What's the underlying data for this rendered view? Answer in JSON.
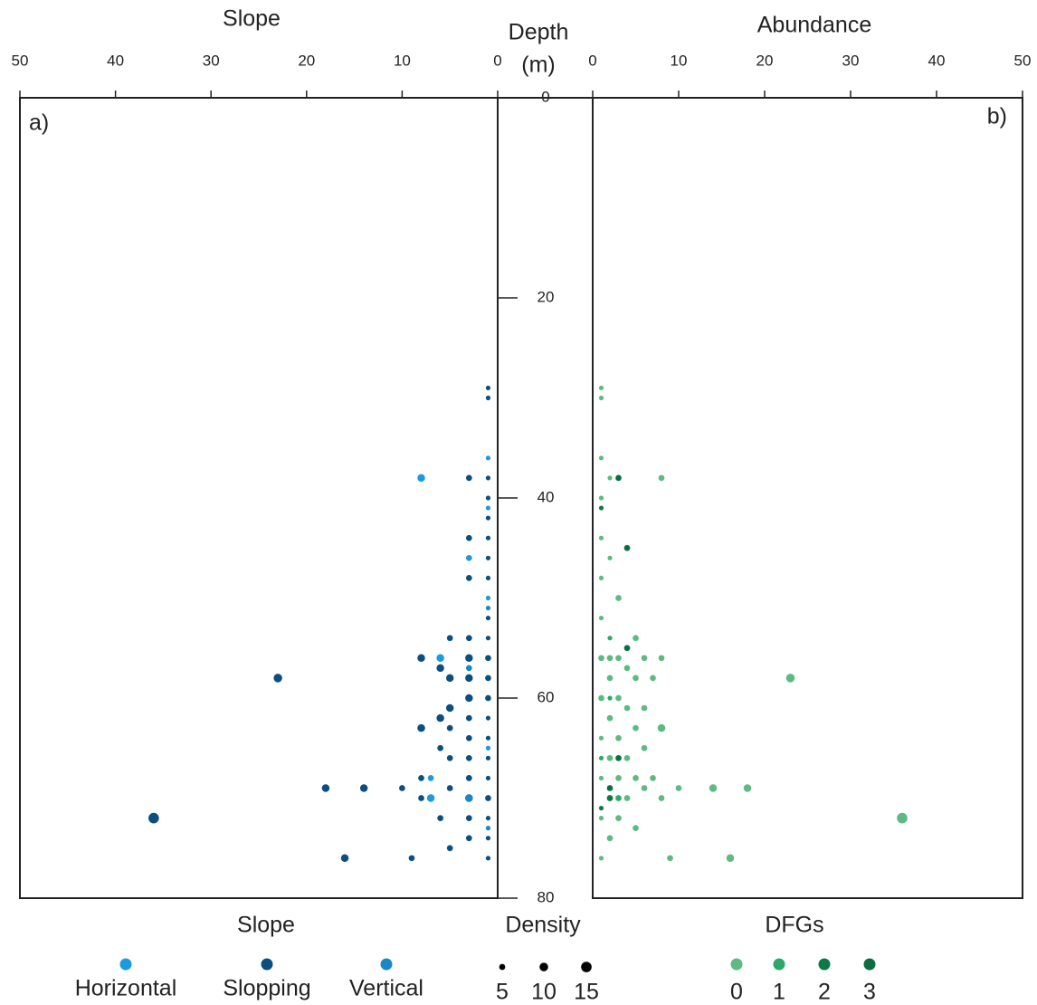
{
  "chart_data": [
    {
      "type": "scatter",
      "title": "Slope",
      "panel_label": "a)",
      "xlim": [
        50,
        0
      ],
      "xticks": [
        50,
        40,
        30,
        20,
        10,
        0
      ],
      "ylim": [
        0,
        80
      ],
      "y_reversed": true,
      "yticks": [
        0,
        20,
        40,
        60,
        80
      ],
      "ylabel": "Depth",
      "yunit": "(m)",
      "legend_title": "Slope",
      "size_legend": {
        "title": "Density",
        "values": [
          5,
          10,
          15
        ]
      },
      "series": [
        {
          "name": "Horizontal",
          "color": "#1a9be0",
          "x": [
            8,
            1,
            1,
            3,
            6,
            7,
            7,
            3,
            3,
            1,
            1
          ],
          "values": [
            38,
            36,
            50,
            46,
            56,
            70,
            68,
            68,
            70,
            65,
            41
          ],
          "sizes": [
            8,
            3,
            3,
            5,
            8,
            8,
            5,
            5,
            5,
            3,
            3
          ]
        },
        {
          "name": "Slopping",
          "color": "#0b4f80",
          "x": [
            1,
            1,
            1,
            1,
            1,
            1,
            1,
            1,
            1,
            1,
            1,
            1,
            1,
            1,
            1,
            1,
            1,
            1,
            1,
            1,
            1,
            3,
            3,
            3,
            3,
            3,
            3,
            3,
            3,
            3,
            3,
            3,
            3,
            3,
            3,
            5,
            5,
            5,
            5,
            5,
            5,
            5,
            6,
            6,
            6,
            6,
            8,
            8,
            8,
            8,
            10,
            9,
            14,
            18,
            16,
            23,
            36
          ],
          "values": [
            29,
            30,
            38,
            40,
            42,
            44,
            46,
            48,
            52,
            54,
            56,
            58,
            60,
            62,
            64,
            66,
            68,
            70,
            72,
            74,
            76,
            38,
            44,
            48,
            54,
            56,
            58,
            60,
            62,
            64,
            66,
            68,
            70,
            72,
            74,
            54,
            58,
            61,
            63,
            66,
            69,
            75,
            57,
            62,
            65,
            72,
            56,
            63,
            68,
            70,
            69,
            76,
            69,
            69,
            76,
            58,
            72
          ],
          "sizes": [
            3,
            3,
            3,
            3,
            3,
            3,
            3,
            3,
            3,
            3,
            5,
            5,
            5,
            3,
            3,
            3,
            3,
            5,
            3,
            3,
            3,
            5,
            5,
            5,
            5,
            8,
            8,
            8,
            5,
            5,
            5,
            5,
            8,
            5,
            5,
            5,
            8,
            8,
            5,
            5,
            5,
            5,
            8,
            8,
            5,
            5,
            8,
            8,
            5,
            5,
            5,
            5,
            8,
            8,
            8,
            10,
            15
          ]
        },
        {
          "name": "Vertical",
          "color": "#1987c9",
          "x": [
            1,
            3,
            3,
            1
          ],
          "values": [
            51,
            57,
            70,
            73
          ],
          "sizes": [
            3,
            5,
            8,
            3
          ]
        }
      ]
    },
    {
      "type": "scatter",
      "title": "Abundance",
      "panel_label": "b)",
      "xlim": [
        0,
        50
      ],
      "xticks": [
        0,
        10,
        20,
        30,
        40,
        50
      ],
      "ylim": [
        0,
        80
      ],
      "y_reversed": true,
      "legend_title": "DFGs",
      "series": [
        {
          "name": "0",
          "color": "#5dba82",
          "x": [
            1,
            1,
            1,
            1,
            1,
            1,
            1,
            1,
            1,
            1,
            1,
            1,
            1,
            2,
            2,
            2,
            2,
            2,
            2,
            2,
            2,
            3,
            3,
            3,
            3,
            3,
            3,
            4,
            4,
            4,
            4,
            5,
            5,
            5,
            5,
            5,
            6,
            6,
            6,
            6,
            7,
            7,
            8,
            8,
            8,
            8,
            10,
            9,
            14,
            18,
            16,
            23,
            36
          ],
          "values": [
            29,
            30,
            36,
            40,
            44,
            48,
            52,
            56,
            60,
            64,
            68,
            72,
            76,
            38,
            46,
            56,
            58,
            62,
            66,
            70,
            74,
            50,
            56,
            60,
            64,
            68,
            72,
            57,
            61,
            66,
            70,
            54,
            58,
            63,
            68,
            73,
            56,
            61,
            65,
            69,
            58,
            68,
            38,
            56,
            63,
            70,
            69,
            76,
            69,
            69,
            76,
            58,
            72
          ],
          "sizes": [
            3,
            3,
            3,
            3,
            3,
            3,
            3,
            5,
            5,
            3,
            3,
            3,
            3,
            3,
            3,
            5,
            5,
            5,
            5,
            5,
            5,
            5,
            5,
            5,
            5,
            5,
            5,
            5,
            5,
            5,
            5,
            5,
            5,
            5,
            5,
            5,
            5,
            5,
            5,
            5,
            5,
            5,
            5,
            5,
            8,
            5,
            5,
            5,
            8,
            8,
            8,
            10,
            15
          ]
        },
        {
          "name": "1",
          "color": "#2ea76b",
          "x": [
            2,
            2,
            3,
            1
          ],
          "values": [
            54,
            60,
            70,
            66
          ],
          "sizes": [
            3,
            3,
            5,
            3
          ]
        },
        {
          "name": "2",
          "color": "#0d7a45",
          "x": [
            1,
            2,
            1
          ],
          "values": [
            41,
            70,
            71
          ],
          "sizes": [
            3,
            5,
            3
          ]
        },
        {
          "name": "3",
          "color": "#0a6e42",
          "x": [
            3,
            4,
            4,
            3,
            2
          ],
          "values": [
            38,
            45,
            55,
            66,
            69
          ],
          "sizes": [
            5,
            5,
            5,
            5,
            5
          ]
        }
      ]
    }
  ]
}
